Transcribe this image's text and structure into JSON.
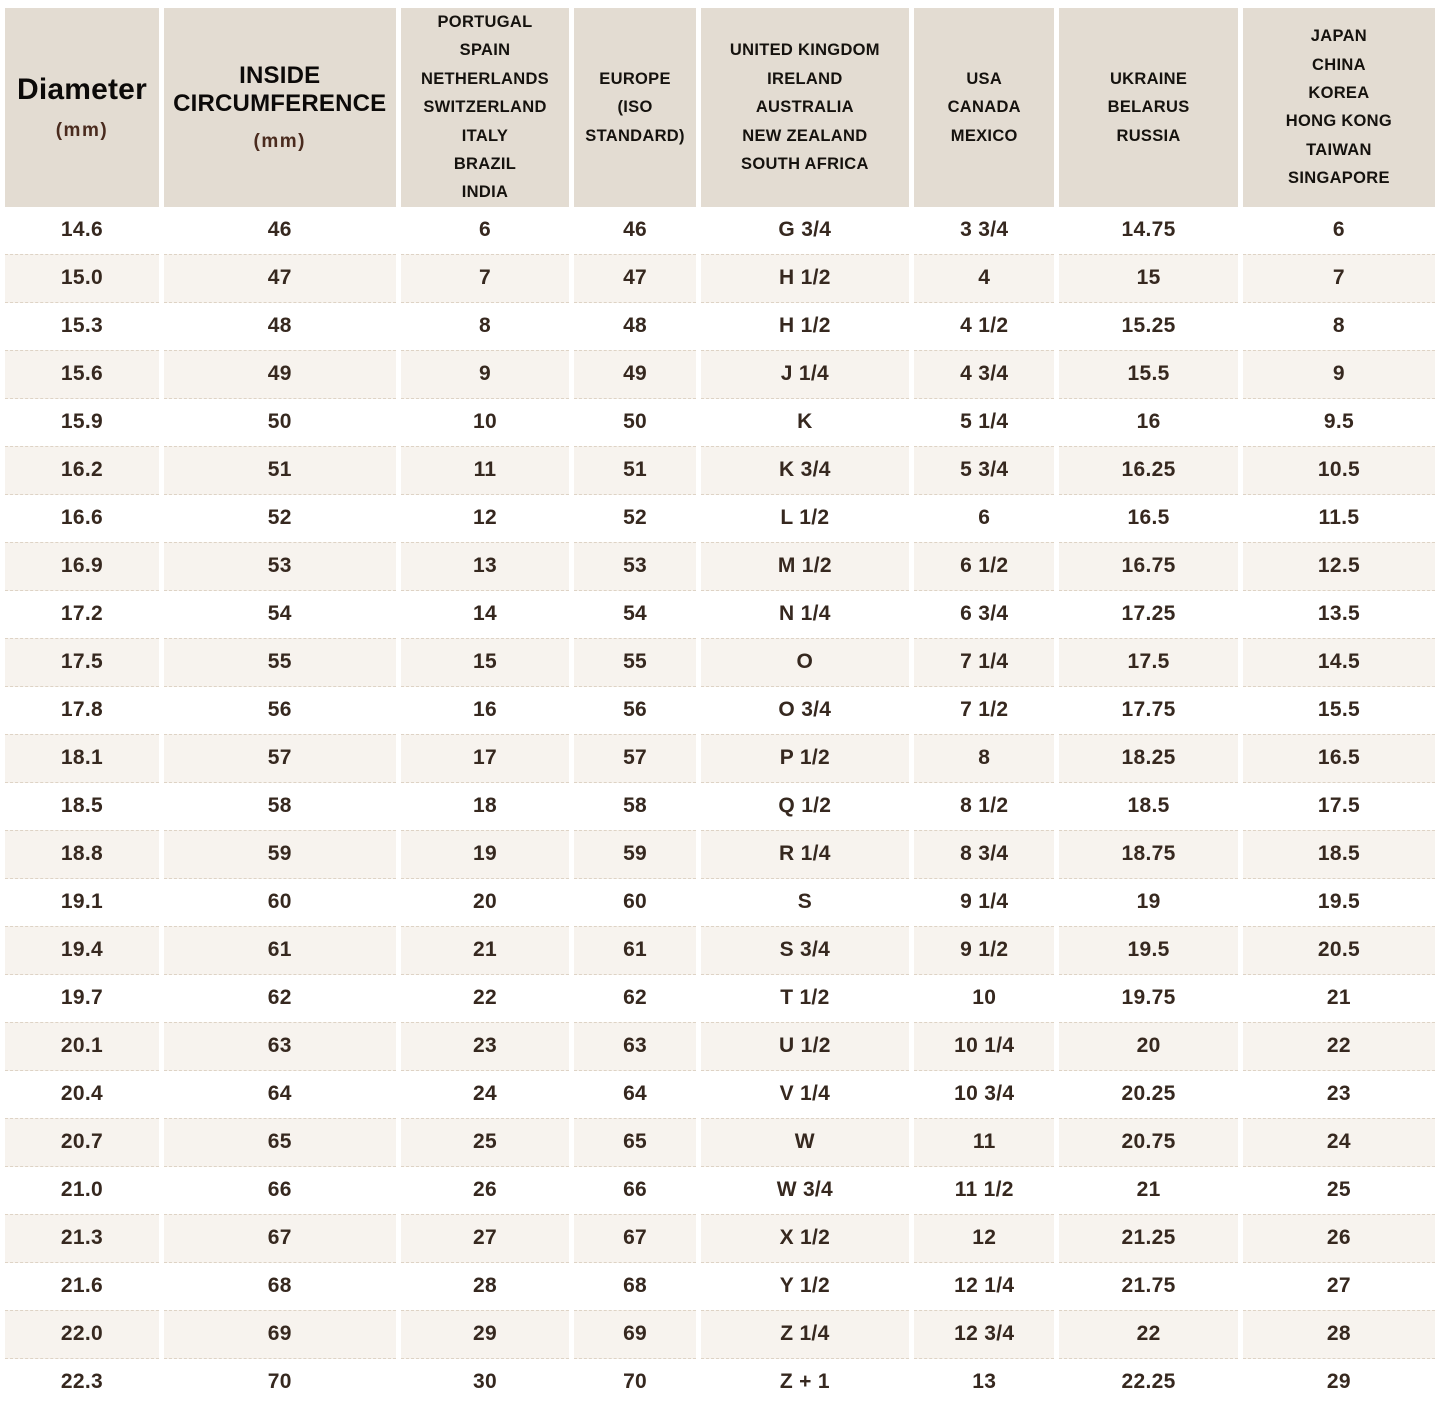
{
  "colors": {
    "header_background": "#e3dcd2",
    "alternate_row_background": "#f7f3ee",
    "row_background": "#ffffff",
    "header_text": "#15120e",
    "unit_text": "#4a2b1e",
    "data_text": "#36281f"
  },
  "chart_data": {
    "type": "table",
    "title": "",
    "columns": [
      {
        "id": "diameter",
        "width_pct": "11.0%",
        "header": {
          "variant": "large",
          "title": "Diameter",
          "unit": "(mm)"
        }
      },
      {
        "id": "circumference",
        "width_pct": "16.7%",
        "header": {
          "variant": "caps",
          "title": "INSIDE CIRCUMFERENCE",
          "unit": "(mm)"
        }
      },
      {
        "id": "portugal-group",
        "width_pct": "12.1%",
        "header": {
          "lines": [
            "PORTUGAL",
            "SPAIN",
            "NETHERLANDS",
            "SWITZERLAND",
            "ITALY",
            "BRAZIL",
            "INDIA"
          ]
        }
      },
      {
        "id": "europe-iso",
        "width_pct": "8.6%",
        "header": {
          "lines": [
            "EUROPE",
            "(ISO",
            "STANDARD)"
          ]
        }
      },
      {
        "id": "uk-group",
        "width_pct": "15.0%",
        "header": {
          "lines": [
            "UNITED KINGDOM",
            "IRELAND",
            "AUSTRALIA",
            "NEW ZEALAND",
            "SOUTH AFRICA"
          ]
        }
      },
      {
        "id": "usa-group",
        "width_pct": "10.0%",
        "header": {
          "lines": [
            "USA",
            "CANADA",
            "MEXICO"
          ]
        }
      },
      {
        "id": "ukraine-group",
        "width_pct": "12.8%",
        "header": {
          "lines": [
            "UKRAINE",
            "BELARUS",
            "RUSSIA"
          ]
        }
      },
      {
        "id": "japan-group",
        "width_pct": "13.8%",
        "header": {
          "lines": [
            "JAPAN",
            "CHINA",
            "KOREA",
            "HONG KONG",
            "TAIWAN",
            "SINGAPORE"
          ]
        }
      }
    ],
    "rows": [
      [
        "14.6",
        "46",
        "6",
        "46",
        "G 3/4",
        "3 3/4",
        "14.75",
        "6"
      ],
      [
        "15.0",
        "47",
        "7",
        "47",
        "H 1/2",
        "4",
        "15",
        "7"
      ],
      [
        "15.3",
        "48",
        "8",
        "48",
        "H 1/2",
        "4 1/2",
        "15.25",
        "8"
      ],
      [
        "15.6",
        "49",
        "9",
        "49",
        "J 1/4",
        "4 3/4",
        "15.5",
        "9"
      ],
      [
        "15.9",
        "50",
        "10",
        "50",
        "K",
        "5 1/4",
        "16",
        "9.5"
      ],
      [
        "16.2",
        "51",
        "11",
        "51",
        "K 3/4",
        "5 3/4",
        "16.25",
        "10.5"
      ],
      [
        "16.6",
        "52",
        "12",
        "52",
        "L 1/2",
        "6",
        "16.5",
        "11.5"
      ],
      [
        "16.9",
        "53",
        "13",
        "53",
        "M 1/2",
        "6 1/2",
        "16.75",
        "12.5"
      ],
      [
        "17.2",
        "54",
        "14",
        "54",
        "N 1/4",
        "6 3/4",
        "17.25",
        "13.5"
      ],
      [
        "17.5",
        "55",
        "15",
        "55",
        "O",
        "7 1/4",
        "17.5",
        "14.5"
      ],
      [
        "17.8",
        "56",
        "16",
        "56",
        "O 3/4",
        "7 1/2",
        "17.75",
        "15.5"
      ],
      [
        "18.1",
        "57",
        "17",
        "57",
        "P 1/2",
        "8",
        "18.25",
        "16.5"
      ],
      [
        "18.5",
        "58",
        "18",
        "58",
        "Q 1/2",
        "8 1/2",
        "18.5",
        "17.5"
      ],
      [
        "18.8",
        "59",
        "19",
        "59",
        "R 1/4",
        "8 3/4",
        "18.75",
        "18.5"
      ],
      [
        "19.1",
        "60",
        "20",
        "60",
        "S",
        "9 1/4",
        "19",
        "19.5"
      ],
      [
        "19.4",
        "61",
        "21",
        "61",
        "S 3/4",
        "9 1/2",
        "19.5",
        "20.5"
      ],
      [
        "19.7",
        "62",
        "22",
        "62",
        "T 1/2",
        "10",
        "19.75",
        "21"
      ],
      [
        "20.1",
        "63",
        "23",
        "63",
        "U 1/2",
        "10 1/4",
        "20",
        "22"
      ],
      [
        "20.4",
        "64",
        "24",
        "64",
        "V 1/4",
        "10 3/4",
        "20.25",
        "23"
      ],
      [
        "20.7",
        "65",
        "25",
        "65",
        "W",
        "11",
        "20.75",
        "24"
      ],
      [
        "21.0",
        "66",
        "26",
        "66",
        "W 3/4",
        "11 1/2",
        "21",
        "25"
      ],
      [
        "21.3",
        "67",
        "27",
        "67",
        "X 1/2",
        "12",
        "21.25",
        "26"
      ],
      [
        "21.6",
        "68",
        "28",
        "68",
        "Y 1/2",
        "12 1/4",
        "21.75",
        "27"
      ],
      [
        "22.0",
        "69",
        "29",
        "69",
        "Z 1/4",
        "12 3/4",
        "22",
        "28"
      ],
      [
        "22.3",
        "70",
        "30",
        "70",
        "Z + 1",
        "13",
        "22.25",
        "29"
      ]
    ]
  }
}
